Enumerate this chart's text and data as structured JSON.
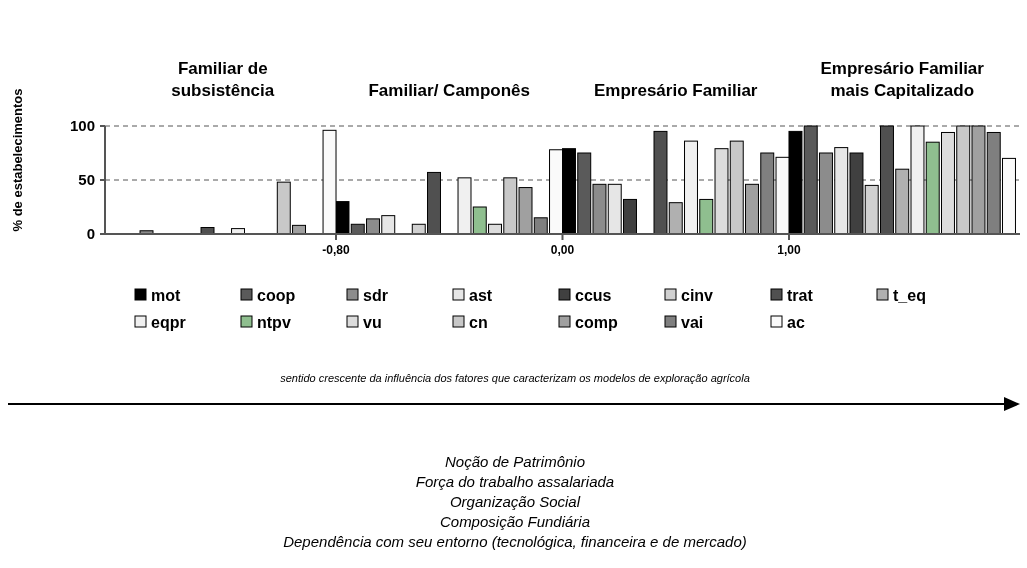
{
  "chart_data": {
    "type": "bar",
    "categories": [
      "Familiar de subsistência",
      "Familiar/ Camponês",
      "Empresário Familiar",
      "Empresário Familiar mais Capitalizado"
    ],
    "ylabel": "% de estabelecimentos",
    "ylim": [
      0,
      100
    ],
    "yticks": [
      0,
      50,
      100
    ],
    "grid": "y",
    "legend": "bottom",
    "series": [
      {
        "name": "mot",
        "color": "#000000",
        "values": [
          0,
          30,
          79,
          95
        ]
      },
      {
        "name": "coop",
        "color": "#5a5a5a",
        "values": [
          0,
          9,
          75,
          100
        ]
      },
      {
        "name": "sdr",
        "color": "#8c8c8c",
        "values": [
          3,
          14,
          46,
          75
        ]
      },
      {
        "name": "ast",
        "color": "#e6e6e6",
        "values": [
          0,
          17,
          46,
          80
        ]
      },
      {
        "name": "ccus",
        "color": "#404040",
        "values": [
          0,
          0,
          32,
          75
        ]
      },
      {
        "name": "cinv",
        "color": "#d0d0d0",
        "values": [
          0,
          9,
          0,
          45
        ]
      },
      {
        "name": "trat",
        "color": "#505050",
        "values": [
          6,
          57,
          95,
          100
        ]
      },
      {
        "name": "t_eq",
        "color": "#b0b0b0",
        "values": [
          0,
          0,
          29,
          60
        ]
      },
      {
        "name": "eqpr",
        "color": "#f0f0f0",
        "values": [
          5,
          52,
          86,
          100
        ]
      },
      {
        "name": "ntpv",
        "color": "#8fbf8f",
        "values": [
          0,
          25,
          32,
          85
        ]
      },
      {
        "name": "vu",
        "color": "#dcdcdc",
        "values": [
          0,
          9,
          79,
          94
        ]
      },
      {
        "name": "cn",
        "color": "#c8c8c8",
        "values": [
          48,
          52,
          86,
          100
        ]
      },
      {
        "name": "comp",
        "color": "#a0a0a0",
        "values": [
          8,
          43,
          46,
          100
        ]
      },
      {
        "name": "vai",
        "color": "#7f7f7f",
        "values": [
          0,
          15,
          75,
          94
        ]
      },
      {
        "name": "ac",
        "color": "#fafafa",
        "values": [
          96,
          78,
          71,
          70
        ]
      }
    ],
    "annotations": [
      "-0,80",
      "0,00",
      "1,00",
      "sentido crescente da influência dos fatores que caracterizam os modelos de exploração agrícola",
      "Noção de Patrimônio",
      "Força do trabalho assalariada",
      "Organização Social",
      "Composição Fundiária",
      "Dependência com seu entorno (tecnológica, financeira e de mercado)"
    ]
  }
}
